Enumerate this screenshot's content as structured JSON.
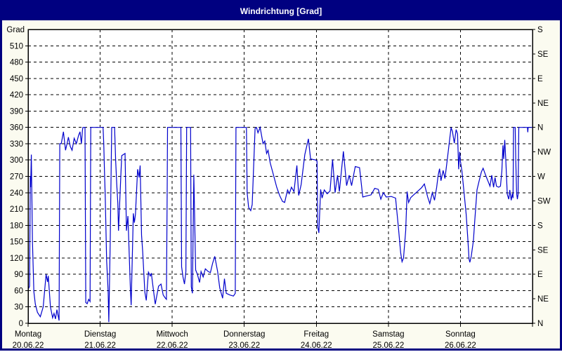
{
  "window": {
    "title": "Windrichtung [Grad]",
    "titlebar_color": "#000080",
    "title_text_color": "#FFFFFF",
    "background_color": "#FBFBF0",
    "border_color": "#000080"
  },
  "chart_data": {
    "type": "line",
    "title": "Windrichtung [Grad]",
    "ylabel": "Grad",
    "ylim": [
      0,
      540
    ],
    "y_tick_step": 30,
    "y_tick_values": [
      0,
      30,
      60,
      90,
      120,
      150,
      180,
      210,
      240,
      270,
      300,
      330,
      360,
      390,
      420,
      450,
      480,
      510
    ],
    "right_axis_ticks": [
      {
        "label": "S",
        "value": 540
      },
      {
        "label": "SE",
        "value": 495
      },
      {
        "label": "E",
        "value": 450
      },
      {
        "label": "NE",
        "value": 405
      },
      {
        "label": "N",
        "value": 360
      },
      {
        "label": "NW",
        "value": 315
      },
      {
        "label": "W",
        "value": 270
      },
      {
        "label": "SW",
        "value": 225
      },
      {
        "label": "S",
        "value": 180
      },
      {
        "label": "SE",
        "value": 135
      },
      {
        "label": "E",
        "value": 90
      },
      {
        "label": "NE",
        "value": 45
      },
      {
        "label": "N",
        "value": 0
      }
    ],
    "x_days": [
      {
        "label": "Montag",
        "date": "20.06.22"
      },
      {
        "label": "Dienstag",
        "date": "21.06.22"
      },
      {
        "label": "Mittwoch",
        "date": "22.06.22"
      },
      {
        "label": "Donnerstag",
        "date": "23.06.22"
      },
      {
        "label": "Freitag",
        "date": "24.06.22"
      },
      {
        "label": "Samstag",
        "date": "25.06.22"
      },
      {
        "label": "Sonntag",
        "date": "26.06.22"
      }
    ],
    "grid": true,
    "plot_background": "#FFFFFF",
    "grid_color": "#000000",
    "axis_color": "#000000",
    "line_color": "#0000CC",
    "series": [
      {
        "name": "Windrichtung",
        "x_unit": "days_from_monday",
        "points": [
          [
            0.0,
            62
          ],
          [
            0.02,
            68
          ],
          [
            0.03,
            270
          ],
          [
            0.035,
            250
          ],
          [
            0.045,
            310
          ],
          [
            0.06,
            150
          ],
          [
            0.08,
            58
          ],
          [
            0.1,
            35
          ],
          [
            0.13,
            20
          ],
          [
            0.17,
            12
          ],
          [
            0.21,
            30
          ],
          [
            0.25,
            90
          ],
          [
            0.27,
            76
          ],
          [
            0.28,
            87
          ],
          [
            0.31,
            30
          ],
          [
            0.34,
            10
          ],
          [
            0.36,
            18
          ],
          [
            0.38,
            8
          ],
          [
            0.4,
            25
          ],
          [
            0.43,
            5
          ],
          [
            0.44,
            330
          ],
          [
            0.46,
            330
          ],
          [
            0.49,
            352
          ],
          [
            0.52,
            318
          ],
          [
            0.54,
            330
          ],
          [
            0.56,
            342
          ],
          [
            0.585,
            325
          ],
          [
            0.61,
            318
          ],
          [
            0.64,
            340
          ],
          [
            0.67,
            330
          ],
          [
            0.7,
            345
          ],
          [
            0.72,
            352
          ],
          [
            0.74,
            330
          ],
          [
            0.755,
            355
          ],
          [
            0.76,
            360
          ],
          [
            0.79,
            360
          ],
          [
            0.8,
            38
          ],
          [
            0.82,
            36
          ],
          [
            0.84,
            44
          ],
          [
            0.86,
            40
          ],
          [
            0.87,
            360
          ],
          [
            1.04,
            360
          ],
          [
            1.05,
            330
          ],
          [
            1.06,
            280
          ],
          [
            1.07,
            233
          ],
          [
            1.09,
            115
          ],
          [
            1.11,
            60
          ],
          [
            1.12,
            2
          ],
          [
            1.14,
            150
          ],
          [
            1.16,
            360
          ],
          [
            1.2,
            360
          ],
          [
            1.215,
            300
          ],
          [
            1.23,
            255
          ],
          [
            1.245,
            221
          ],
          [
            1.255,
            170
          ],
          [
            1.29,
            280
          ],
          [
            1.3,
            308
          ],
          [
            1.345,
            312
          ],
          [
            1.365,
            170
          ],
          [
            1.385,
            197
          ],
          [
            1.42,
            60
          ],
          [
            1.43,
            33
          ],
          [
            1.46,
            202
          ],
          [
            1.475,
            185
          ],
          [
            1.49,
            200
          ],
          [
            1.52,
            283
          ],
          [
            1.54,
            268
          ],
          [
            1.555,
            290
          ],
          [
            1.575,
            162
          ],
          [
            1.59,
            132
          ],
          [
            1.62,
            57
          ],
          [
            1.64,
            42
          ],
          [
            1.67,
            94
          ],
          [
            1.695,
            87
          ],
          [
            1.71,
            92
          ],
          [
            1.74,
            60
          ],
          [
            1.765,
            35
          ],
          [
            1.81,
            68
          ],
          [
            1.845,
            72
          ],
          [
            1.875,
            52
          ],
          [
            1.9,
            47
          ],
          [
            1.92,
            44
          ],
          [
            1.93,
            246
          ],
          [
            1.935,
            360
          ],
          [
            2.12,
            360
          ],
          [
            2.13,
            104
          ],
          [
            2.15,
            85
          ],
          [
            2.17,
            72
          ],
          [
            2.19,
            95
          ],
          [
            2.2,
            360
          ],
          [
            2.255,
            360
          ],
          [
            2.265,
            67
          ],
          [
            2.28,
            55
          ],
          [
            2.3,
            273
          ],
          [
            2.325,
            98
          ],
          [
            2.35,
            90
          ],
          [
            2.38,
            75
          ],
          [
            2.4,
            95
          ],
          [
            2.43,
            85
          ],
          [
            2.46,
            100
          ],
          [
            2.5,
            95
          ],
          [
            2.53,
            93
          ],
          [
            2.56,
            110
          ],
          [
            2.59,
            123
          ],
          [
            2.63,
            95
          ],
          [
            2.66,
            65
          ],
          [
            2.7,
            46
          ],
          [
            2.725,
            82
          ],
          [
            2.75,
            55
          ],
          [
            2.8,
            52
          ],
          [
            2.85,
            50
          ],
          [
            2.875,
            55
          ],
          [
            2.885,
            360
          ],
          [
            3.03,
            360
          ],
          [
            3.04,
            240
          ],
          [
            3.06,
            213
          ],
          [
            3.09,
            207
          ],
          [
            3.11,
            218
          ],
          [
            3.15,
            358
          ],
          [
            3.17,
            360
          ],
          [
            3.19,
            350
          ],
          [
            3.22,
            360
          ],
          [
            3.26,
            330
          ],
          [
            3.285,
            335
          ],
          [
            3.31,
            312
          ],
          [
            3.33,
            318
          ],
          [
            3.36,
            295
          ],
          [
            3.41,
            270
          ],
          [
            3.45,
            250
          ],
          [
            3.49,
            235
          ],
          [
            3.53,
            224
          ],
          [
            3.56,
            222
          ],
          [
            3.6,
            245
          ],
          [
            3.625,
            238
          ],
          [
            3.655,
            250
          ],
          [
            3.69,
            242
          ],
          [
            3.73,
            290
          ],
          [
            3.755,
            235
          ],
          [
            3.79,
            255
          ],
          [
            3.84,
            310
          ],
          [
            3.89,
            339
          ],
          [
            3.92,
            302
          ],
          [
            3.99,
            300
          ],
          [
            4.01,
            298
          ],
          [
            4.02,
            177
          ],
          [
            4.035,
            166
          ],
          [
            4.06,
            246
          ],
          [
            4.08,
            230
          ],
          [
            4.11,
            245
          ],
          [
            4.15,
            238
          ],
          [
            4.19,
            243
          ],
          [
            4.225,
            301
          ],
          [
            4.26,
            240
          ],
          [
            4.295,
            272
          ],
          [
            4.32,
            242
          ],
          [
            4.375,
            316
          ],
          [
            4.42,
            253
          ],
          [
            4.455,
            272
          ],
          [
            4.49,
            253
          ],
          [
            4.54,
            288
          ],
          [
            4.6,
            286
          ],
          [
            4.645,
            232
          ],
          [
            4.7,
            234
          ],
          [
            4.76,
            236
          ],
          [
            4.81,
            248
          ],
          [
            4.86,
            246
          ],
          [
            4.895,
            228
          ],
          [
            4.93,
            240
          ],
          [
            4.97,
            232
          ],
          [
            5.04,
            233
          ],
          [
            5.1,
            230
          ],
          [
            5.14,
            175
          ],
          [
            5.17,
            130
          ],
          [
            5.19,
            113
          ],
          [
            5.21,
            120
          ],
          [
            5.24,
            170
          ],
          [
            5.26,
            242
          ],
          [
            5.28,
            222
          ],
          [
            5.31,
            231
          ],
          [
            5.35,
            236
          ],
          [
            5.41,
            243
          ],
          [
            5.46,
            249
          ],
          [
            5.5,
            256
          ],
          [
            5.545,
            232
          ],
          [
            5.575,
            220
          ],
          [
            5.61,
            240
          ],
          [
            5.64,
            226
          ],
          [
            5.67,
            250
          ],
          [
            5.69,
            271
          ],
          [
            5.71,
            284
          ],
          [
            5.73,
            262
          ],
          [
            5.76,
            281
          ],
          [
            5.785,
            266
          ],
          [
            5.82,
            304
          ],
          [
            5.85,
            337
          ],
          [
            5.87,
            360
          ],
          [
            5.89,
            352
          ],
          [
            5.915,
            331
          ],
          [
            5.94,
            356
          ],
          [
            5.96,
            348
          ],
          [
            5.975,
            283
          ],
          [
            5.99,
            315
          ],
          [
            6.0,
            298
          ],
          [
            6.02,
            280
          ],
          [
            6.05,
            240
          ],
          [
            6.08,
            200
          ],
          [
            6.1,
            160
          ],
          [
            6.12,
            118
          ],
          [
            6.13,
            112
          ],
          [
            6.15,
            123
          ],
          [
            6.18,
            152
          ],
          [
            6.2,
            190
          ],
          [
            6.23,
            245
          ],
          [
            6.26,
            262
          ],
          [
            6.29,
            278
          ],
          [
            6.315,
            285
          ],
          [
            6.35,
            272
          ],
          [
            6.38,
            262
          ],
          [
            6.41,
            252
          ],
          [
            6.435,
            272
          ],
          [
            6.46,
            250
          ],
          [
            6.48,
            268
          ],
          [
            6.5,
            252
          ],
          [
            6.53,
            250
          ],
          [
            6.555,
            252
          ],
          [
            6.575,
            280
          ],
          [
            6.59,
            327
          ],
          [
            6.6,
            302
          ],
          [
            6.615,
            337
          ],
          [
            6.63,
            300
          ],
          [
            6.65,
            237
          ],
          [
            6.67,
            228
          ],
          [
            6.685,
            245
          ],
          [
            6.705,
            226
          ],
          [
            6.72,
            238
          ],
          [
            6.73,
            230
          ],
          [
            6.737,
            360
          ],
          [
            6.76,
            360
          ],
          [
            6.768,
            300
          ],
          [
            6.78,
            239
          ],
          [
            6.79,
            228
          ],
          [
            6.8,
            237
          ],
          [
            6.81,
            360
          ],
          [
            6.93,
            360
          ],
          [
            6.935,
            351
          ],
          [
            6.94,
            360
          ],
          [
            7.0,
            360
          ]
        ]
      }
    ]
  }
}
